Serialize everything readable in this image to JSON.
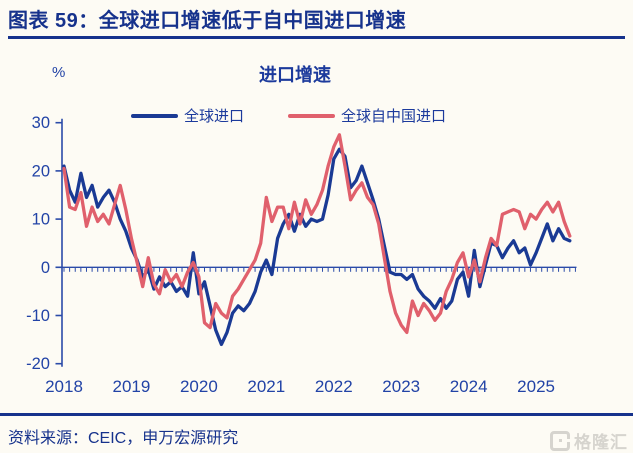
{
  "header": {
    "title": "图表 59：全球进口增速低于自中国进口增速"
  },
  "source": {
    "label": "资料来源：CEIC，申万宏源研究"
  },
  "watermark": {
    "text": "格隆汇",
    "icon": "gelonghui-logo-icon"
  },
  "colors": {
    "accent_navy": "#16328C",
    "axis_blue": "#2B4BA8",
    "tick_label_blue": "#2243A6",
    "line_blue": "#1A3A94",
    "line_red": "#E0606C",
    "watermark_gray": "#D6D4CE",
    "background": "#FDFBF4"
  },
  "chart_data": {
    "type": "line",
    "title": "进口增速",
    "unit_label": "%",
    "x_freq": "monthly",
    "x_start": "2018-01",
    "x_end": "2025-07",
    "x_tick_labels": [
      "2018",
      "2019",
      "2020",
      "2021",
      "2022",
      "2023",
      "2024",
      "2025"
    ],
    "y_ticks": [
      30,
      20,
      10,
      0,
      -10,
      -20
    ],
    "ylim": [
      -20,
      30
    ],
    "grid": false,
    "legend_position": "top",
    "series": [
      {
        "id": "global-imports",
        "name": "全球进口",
        "color": "#1A3A94",
        "values": [
          21,
          16,
          13.5,
          19.5,
          14.5,
          17,
          12.5,
          14.5,
          16,
          13.5,
          10,
          7.5,
          4,
          1.5,
          -2,
          -0.5,
          -4.5,
          -2,
          -4,
          -3,
          -5,
          -4,
          -6,
          3,
          -5.5,
          -3,
          -8,
          -13,
          -16,
          -13.5,
          -9.5,
          -8,
          -9,
          -7.5,
          -5,
          -1,
          1.5,
          -1.5,
          6,
          9,
          11,
          7.5,
          11,
          8.5,
          10,
          9.5,
          10,
          15,
          22.5,
          24.5,
          23,
          16.5,
          18,
          21,
          17.5,
          14,
          10,
          4.5,
          -1,
          -1.5,
          -1.5,
          -2.5,
          -1.5,
          -4.5,
          -6,
          -7,
          -8.5,
          -6.5,
          -8.5,
          -7,
          -2.5,
          -1,
          -6,
          3.5,
          -4,
          0.5,
          5,
          4.5,
          2,
          4,
          5.5,
          3,
          4,
          0.5,
          3,
          6,
          9,
          5.5,
          8,
          6,
          5.5
        ]
      },
      {
        "id": "imports-from-china",
        "name": "全球自中国进口",
        "color": "#E0606C",
        "values": [
          20.5,
          12.5,
          12,
          15.5,
          8.5,
          12.5,
          9.5,
          11,
          9,
          13,
          17,
          12,
          6,
          1,
          -4,
          2,
          -3.5,
          -5.5,
          -0.5,
          -3,
          -1.5,
          -4,
          -1,
          1,
          -2,
          -11.5,
          -12.5,
          -7.5,
          -9.5,
          -10.5,
          -6,
          -4.5,
          -2.5,
          -0.5,
          1.5,
          5,
          14.5,
          9.5,
          12.5,
          12.5,
          8,
          13.5,
          9,
          14,
          11,
          13,
          16,
          21,
          25,
          27.5,
          21,
          14,
          16,
          17.5,
          14.5,
          13,
          9,
          2,
          -5,
          -9.5,
          -12,
          -13.5,
          -7,
          -10,
          -7.5,
          -9,
          -11,
          -9.5,
          -5,
          -2.5,
          1,
          3,
          -2,
          1.5,
          -3,
          2,
          6,
          4.5,
          11,
          11.5,
          12,
          11.5,
          8,
          11,
          10,
          12,
          13.5,
          11.5,
          13.5,
          9.5,
          6.5
        ]
      }
    ]
  }
}
